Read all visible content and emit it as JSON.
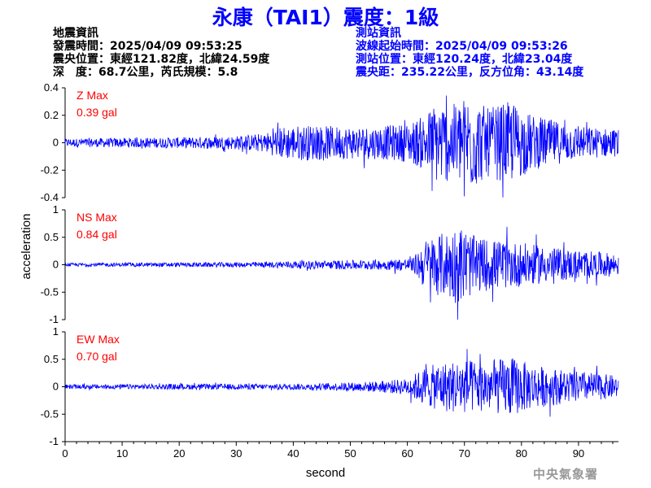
{
  "title": "永康（TAI1）震度：1級",
  "earthquake_info": {
    "heading": "地震資訊",
    "origin_time": "發震時間：2025/04/09 09:53:25",
    "epicenter": "震央位置：東經121.82度，北緯24.59度",
    "depth_magnitude": "深　度：68.7公里，芮氏規模：5.8"
  },
  "station_info": {
    "heading": "測站資訊",
    "wave_start": "波線起始時間：2025/04/09 09:53:26",
    "station_location": "測站位置：東經120.24度，北緯23.04度",
    "distance_azimuth": "震央距：235.22公里，反方位角：43.14度"
  },
  "agency": "中央氣象署",
  "colors": {
    "trace": "#0000ff",
    "max_label": "#ff0000",
    "title": "#0000ff"
  },
  "chart_data": {
    "type": "line",
    "xlabel": "second",
    "ylabel": "acceleration",
    "xlim": [
      0,
      97
    ],
    "x_ticks": [
      "0",
      "10",
      "20",
      "30",
      "40",
      "50",
      "60",
      "70",
      "80",
      "90"
    ],
    "panels": [
      {
        "name": "Z",
        "max_label": "Z Max",
        "max_value": "0.39 gal",
        "ylim": [
          -0.4,
          0.4
        ],
        "y_ticks": [
          "0.4",
          "0.2",
          "0",
          "-0.2",
          "-0.4"
        ],
        "envelope": [
          [
            0,
            0.03
          ],
          [
            10,
            0.035
          ],
          [
            20,
            0.04
          ],
          [
            30,
            0.05
          ],
          [
            35,
            0.07
          ],
          [
            38,
            0.12
          ],
          [
            42,
            0.13
          ],
          [
            48,
            0.12
          ],
          [
            55,
            0.12
          ],
          [
            60,
            0.14
          ],
          [
            63,
            0.2
          ],
          [
            65,
            0.3
          ],
          [
            68,
            0.28
          ],
          [
            71,
            0.36
          ],
          [
            74,
            0.25
          ],
          [
            78,
            0.3
          ],
          [
            82,
            0.2
          ],
          [
            90,
            0.12
          ],
          [
            97,
            0.1
          ]
        ]
      },
      {
        "name": "NS",
        "max_label": "NS Max",
        "max_value": "0.84 gal",
        "ylim": [
          -1,
          1
        ],
        "y_ticks": [
          "1",
          "0.5",
          "0",
          "-0.5",
          "-1"
        ],
        "envelope": [
          [
            0,
            0.03
          ],
          [
            20,
            0.04
          ],
          [
            35,
            0.05
          ],
          [
            40,
            0.07
          ],
          [
            48,
            0.08
          ],
          [
            55,
            0.09
          ],
          [
            61,
            0.12
          ],
          [
            63,
            0.45
          ],
          [
            65,
            0.55
          ],
          [
            67,
            0.6
          ],
          [
            69,
            0.75
          ],
          [
            72,
            0.5
          ],
          [
            76,
            0.45
          ],
          [
            80,
            0.4
          ],
          [
            86,
            0.3
          ],
          [
            92,
            0.25
          ],
          [
            97,
            0.2
          ]
        ]
      },
      {
        "name": "EW",
        "max_label": "EW Max",
        "max_value": "0.70 gal",
        "ylim": [
          -1,
          1
        ],
        "y_ticks": [
          "1",
          "0.5",
          "0",
          "-0.5",
          "-1"
        ],
        "envelope": [
          [
            0,
            0.04
          ],
          [
            20,
            0.05
          ],
          [
            35,
            0.05
          ],
          [
            45,
            0.06
          ],
          [
            55,
            0.1
          ],
          [
            60,
            0.15
          ],
          [
            63,
            0.35
          ],
          [
            66,
            0.45
          ],
          [
            70,
            0.5
          ],
          [
            74,
            0.45
          ],
          [
            78,
            0.55
          ],
          [
            82,
            0.4
          ],
          [
            88,
            0.3
          ],
          [
            93,
            0.25
          ],
          [
            97,
            0.2
          ]
        ]
      }
    ]
  }
}
